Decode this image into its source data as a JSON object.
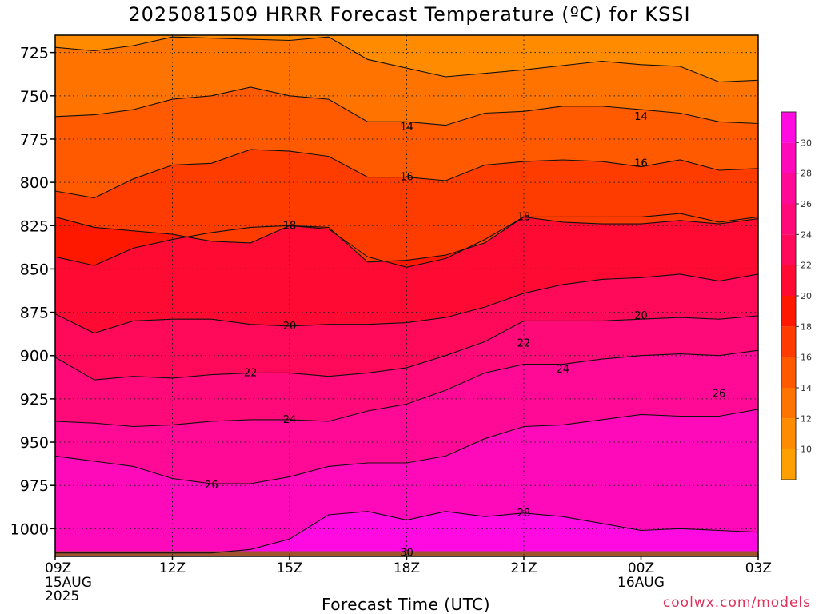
{
  "title": "2025081509 HRRR Forecast Temperature (ºC) for KSSI",
  "credit": "coolwx.com/models",
  "chart_data": {
    "type": "contour",
    "title": "2025081509 HRRR Forecast Temperature (ºC) for KSSI",
    "xlabel": "Forecast Time (UTC)",
    "ylabel": "",
    "x_range_hours": [
      0,
      18
    ],
    "y_range_hpa": [
      715,
      1016
    ],
    "y_ticks": [
      725,
      750,
      775,
      800,
      825,
      850,
      875,
      900,
      925,
      950,
      975,
      1000
    ],
    "x_ticks": [
      {
        "hour": 0,
        "label": "09Z",
        "sub": [
          "15AUG",
          "2025"
        ]
      },
      {
        "hour": 3,
        "label": "12Z",
        "sub": []
      },
      {
        "hour": 6,
        "label": "15Z",
        "sub": []
      },
      {
        "hour": 9,
        "label": "18Z",
        "sub": []
      },
      {
        "hour": 12,
        "label": "21Z",
        "sub": []
      },
      {
        "hour": 15,
        "label": "00Z",
        "sub": [
          "16AUG"
        ]
      },
      {
        "hour": 18,
        "label": "03Z",
        "sub": []
      }
    ],
    "grid": "dotted",
    "colorbar": {
      "levels": [
        10,
        12,
        14,
        16,
        18,
        20,
        22,
        24,
        26,
        28,
        30
      ],
      "colors": [
        "#ffa000",
        "#ff8c00",
        "#ff7400",
        "#ff5a00",
        "#ff3c00",
        "#ff1800",
        "#ff0a32",
        "#ff0a5a",
        "#ff0a78",
        "#ff0a96",
        "#ff0aba",
        "#ff0ae0"
      ]
    },
    "contours": [
      {
        "value": 12,
        "points": [
          [
            0,
            722
          ],
          [
            1,
            724
          ],
          [
            2,
            721
          ],
          [
            3,
            716
          ],
          [
            6,
            718
          ],
          [
            7,
            716
          ],
          [
            8,
            729
          ],
          [
            10,
            739
          ],
          [
            11,
            737
          ],
          [
            12,
            735
          ],
          [
            14,
            730
          ],
          [
            15,
            732
          ],
          [
            16,
            733
          ],
          [
            17,
            742
          ],
          [
            18,
            741
          ]
        ]
      },
      {
        "value": 14,
        "labels": [
          [
            9,
            768
          ],
          [
            15,
            762
          ]
        ],
        "points": [
          [
            0,
            762
          ],
          [
            1,
            761
          ],
          [
            2,
            758
          ],
          [
            3,
            752
          ],
          [
            4,
            750
          ],
          [
            5,
            745
          ],
          [
            6,
            750
          ],
          [
            7,
            752
          ],
          [
            8,
            765
          ],
          [
            9,
            765
          ],
          [
            10,
            767
          ],
          [
            11,
            760
          ],
          [
            12,
            759
          ],
          [
            13,
            756
          ],
          [
            14,
            756
          ],
          [
            15,
            758
          ],
          [
            16,
            760
          ],
          [
            17,
            765
          ],
          [
            18,
            766
          ]
        ]
      },
      {
        "value": 16,
        "labels": [
          [
            9,
            797
          ],
          [
            15,
            789
          ]
        ],
        "points": [
          [
            0,
            805
          ],
          [
            1,
            809
          ],
          [
            2,
            798
          ],
          [
            3,
            790
          ],
          [
            4,
            789
          ],
          [
            5,
            781
          ],
          [
            6,
            782
          ],
          [
            7,
            785
          ],
          [
            8,
            797
          ],
          [
            9,
            797
          ],
          [
            10,
            799
          ],
          [
            11,
            790
          ],
          [
            12,
            788
          ],
          [
            13,
            787
          ],
          [
            14,
            788
          ],
          [
            15,
            791
          ],
          [
            16,
            787
          ],
          [
            17,
            793
          ],
          [
            18,
            792
          ]
        ]
      },
      {
        "value": 18,
        "labels": [
          [
            6,
            825
          ],
          [
            12,
            820
          ]
        ],
        "points": [
          [
            0,
            820
          ],
          [
            1,
            826
          ],
          [
            2,
            828
          ],
          [
            3,
            830
          ],
          [
            4,
            834
          ],
          [
            5,
            835
          ],
          [
            6,
            825
          ],
          [
            7,
            826
          ],
          [
            8,
            846
          ],
          [
            9,
            845
          ],
          [
            10,
            842
          ],
          [
            11,
            835
          ],
          [
            12,
            820
          ],
          [
            13,
            823
          ],
          [
            14,
            824
          ],
          [
            15,
            824
          ],
          [
            16,
            822
          ],
          [
            17,
            824
          ],
          [
            18,
            821
          ]
        ]
      },
      {
        "value": 20,
        "labels": [
          [
            6,
            883
          ],
          [
            15,
            877
          ]
        ],
        "points": [
          [
            0,
            843
          ],
          [
            1,
            848
          ],
          [
            2,
            838
          ],
          [
            3,
            833
          ],
          [
            4,
            829
          ],
          [
            5,
            826
          ],
          [
            6,
            825
          ],
          [
            7,
            827
          ],
          [
            8,
            843
          ],
          [
            9,
            849
          ],
          [
            10,
            844
          ],
          [
            11,
            833
          ],
          [
            12,
            820
          ],
          [
            13,
            820
          ],
          [
            14,
            820
          ],
          [
            15,
            820
          ],
          [
            16,
            818
          ],
          [
            17,
            823
          ],
          [
            18,
            820
          ]
        ]
      },
      {
        "value": 22,
        "labels": [
          [
            5,
            910
          ],
          [
            12,
            893
          ]
        ],
        "points": [
          [
            0,
            876
          ],
          [
            1,
            887
          ],
          [
            2,
            880
          ],
          [
            3,
            879
          ],
          [
            4,
            879
          ],
          [
            5,
            882
          ],
          [
            6,
            883
          ],
          [
            7,
            882
          ],
          [
            8,
            882
          ],
          [
            9,
            881
          ],
          [
            10,
            878
          ],
          [
            11,
            872
          ],
          [
            12,
            864
          ],
          [
            13,
            859
          ],
          [
            14,
            856
          ],
          [
            15,
            855
          ],
          [
            16,
            853
          ],
          [
            17,
            857
          ],
          [
            18,
            853
          ]
        ]
      },
      {
        "value": 24,
        "labels": [
          [
            6,
            937
          ],
          [
            13,
            908
          ]
        ],
        "points": [
          [
            0,
            901
          ],
          [
            1,
            914
          ],
          [
            2,
            912
          ],
          [
            3,
            913
          ],
          [
            4,
            911
          ],
          [
            5,
            910
          ],
          [
            6,
            910
          ],
          [
            7,
            912
          ],
          [
            8,
            910
          ],
          [
            9,
            907
          ],
          [
            10,
            900
          ],
          [
            11,
            892
          ],
          [
            12,
            880
          ],
          [
            13,
            880
          ],
          [
            14,
            880
          ],
          [
            15,
            879
          ],
          [
            16,
            878
          ],
          [
            17,
            879
          ],
          [
            18,
            877
          ]
        ]
      },
      {
        "value": 26,
        "labels": [
          [
            4,
            975
          ],
          [
            17,
            922
          ]
        ],
        "points": [
          [
            0,
            938
          ],
          [
            1,
            939
          ],
          [
            2,
            941
          ],
          [
            3,
            940
          ],
          [
            4,
            938
          ],
          [
            5,
            937
          ],
          [
            6,
            937
          ],
          [
            7,
            938
          ],
          [
            8,
            932
          ],
          [
            9,
            928
          ],
          [
            10,
            920
          ],
          [
            11,
            910
          ],
          [
            12,
            905
          ],
          [
            13,
            905
          ],
          [
            14,
            902
          ],
          [
            15,
            900
          ],
          [
            16,
            899
          ],
          [
            17,
            900
          ],
          [
            18,
            897
          ]
        ]
      },
      {
        "value": 28,
        "labels": [
          [
            12,
            991
          ]
        ],
        "points": [
          [
            0,
            958
          ],
          [
            1,
            961
          ],
          [
            2,
            964
          ],
          [
            3,
            971
          ],
          [
            4,
            974
          ],
          [
            5,
            974
          ],
          [
            6,
            970
          ],
          [
            7,
            964
          ],
          [
            8,
            962
          ],
          [
            9,
            962
          ],
          [
            10,
            958
          ],
          [
            11,
            948
          ],
          [
            12,
            941
          ],
          [
            13,
            940
          ],
          [
            14,
            937
          ],
          [
            15,
            934
          ],
          [
            16,
            935
          ],
          [
            17,
            935
          ],
          [
            18,
            931
          ]
        ]
      },
      {
        "value": 30,
        "labels": [
          [
            9,
            1014
          ]
        ],
        "points": [
          [
            0,
            1014
          ],
          [
            1,
            1014
          ],
          [
            2,
            1014
          ],
          [
            3,
            1014
          ],
          [
            4,
            1014
          ],
          [
            5,
            1012
          ],
          [
            6,
            1006
          ],
          [
            7,
            992
          ],
          [
            8,
            990
          ],
          [
            9,
            995
          ],
          [
            10,
            990
          ],
          [
            11,
            993
          ],
          [
            12,
            991
          ],
          [
            13,
            993
          ],
          [
            14,
            997
          ],
          [
            15,
            1001
          ],
          [
            16,
            1000
          ],
          [
            17,
            1001
          ],
          [
            18,
            1002
          ]
        ]
      }
    ],
    "surface_color": "#a0522d",
    "surface_hpa": 1013
  }
}
